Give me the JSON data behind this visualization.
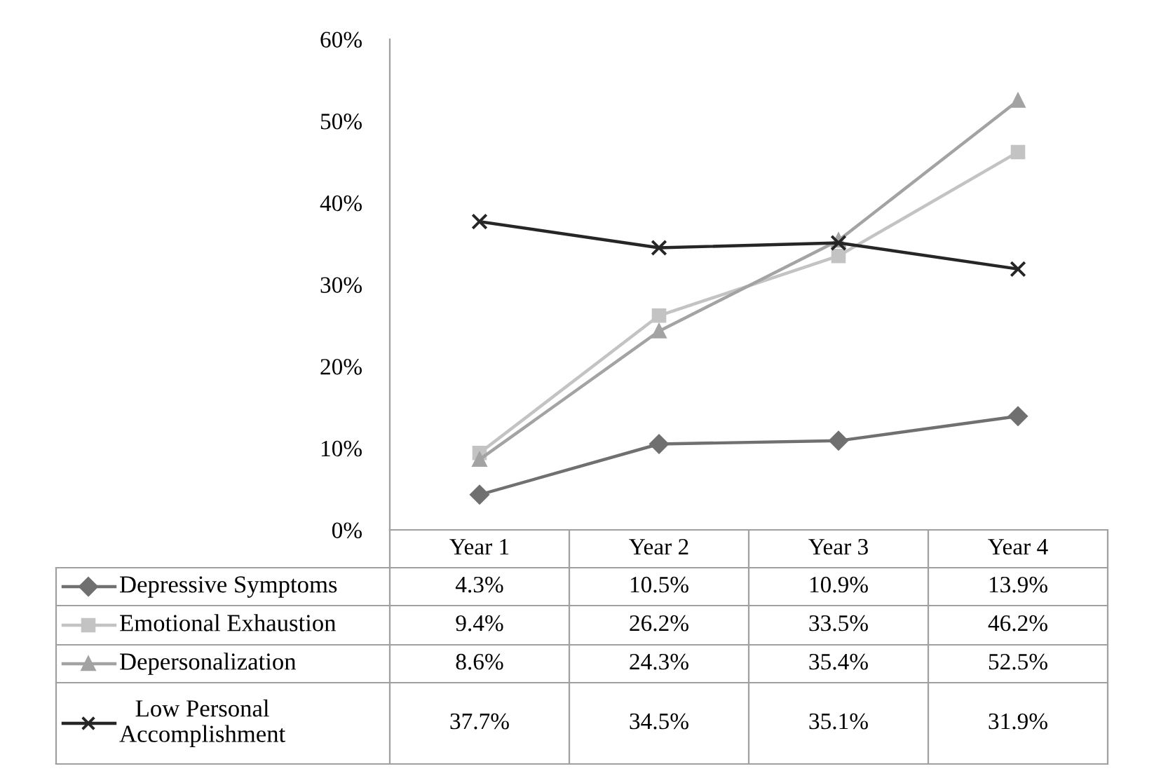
{
  "chart_data": {
    "type": "line",
    "categories": [
      "Year 1",
      "Year 2",
      "Year 3",
      "Year 4"
    ],
    "series": [
      {
        "name": "Depressive Symptoms",
        "color": "#707070",
        "marker": "diamond",
        "values": [
          4.3,
          10.5,
          10.9,
          13.9
        ],
        "value_labels": [
          "4.3%",
          "10.5%",
          "10.9%",
          "13.9%"
        ]
      },
      {
        "name": "Emotional Exhaustion",
        "color": "#c3c3c3",
        "marker": "square",
        "values": [
          9.4,
          26.2,
          33.5,
          46.2
        ],
        "value_labels": [
          "9.4%",
          "26.2%",
          "33.5%",
          "46.2%"
        ]
      },
      {
        "name": "Depersonalization",
        "color": "#a3a3a3",
        "marker": "triangle",
        "values": [
          8.6,
          24.3,
          35.4,
          52.5
        ],
        "value_labels": [
          "8.6%",
          "24.3%",
          "35.4%",
          "52.5%"
        ]
      },
      {
        "name": "Low Personal Accomplishment",
        "color": "#262626",
        "marker": "cross",
        "values": [
          37.7,
          34.5,
          35.1,
          31.9
        ],
        "value_labels": [
          "37.7%",
          "34.5%",
          "35.1%",
          "31.9%"
        ]
      }
    ],
    "ylim": [
      0,
      60
    ],
    "yticks": [
      {
        "value": 0,
        "label": "0%"
      },
      {
        "value": 10,
        "label": "10%"
      },
      {
        "value": 20,
        "label": "20%"
      },
      {
        "value": 30,
        "label": "30%"
      },
      {
        "value": 40,
        "label": "40%"
      },
      {
        "value": 50,
        "label": "50%"
      },
      {
        "value": 60,
        "label": "60%"
      }
    ],
    "legend": "bottom",
    "grid": false,
    "line_style": "solid"
  }
}
